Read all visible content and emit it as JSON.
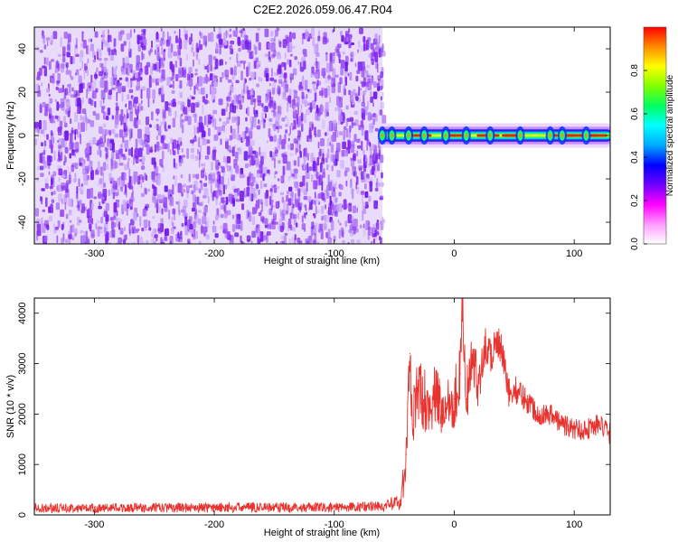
{
  "title": "C2E2.2026.059.06.47.R04",
  "colors": {
    "background": "#ffffff",
    "spectrogram_noise": "#7f1ff0",
    "snr_line": "#e8322e",
    "colormap": [
      "#ffffff",
      "#ff9bff",
      "#ff00ff",
      "#7000ff",
      "#0000ff",
      "#00aaff",
      "#00ffff",
      "#00ff60",
      "#7fff00",
      "#ffff00",
      "#ff8c00",
      "#ff0000"
    ]
  },
  "chart_data": [
    {
      "type": "heatmap",
      "xlabel": "Height of straight line (km)",
      "ylabel": "Frequency (Hz)",
      "xlim": [
        -350,
        130
      ],
      "ylim": [
        -50,
        50
      ],
      "x_ticks": [
        -300,
        -200,
        -100,
        0,
        100
      ],
      "x_tick_labels": [
        "-300",
        "-200",
        "-100",
        "0",
        "100"
      ],
      "y_ticks": [
        -40,
        -20,
        0,
        20,
        40
      ],
      "y_tick_labels": [
        "-40",
        "-20",
        "0",
        "20",
        "40"
      ],
      "noise_region_x": [
        -350,
        -60
      ],
      "signal": {
        "x_start": -62,
        "x_end": 130,
        "frequency": 0,
        "band_halfwidth": 4,
        "peak_x": [
          -60,
          -52,
          -38,
          -25,
          -7,
          10,
          30,
          55,
          80,
          90,
          110
        ]
      },
      "colorbar": {
        "label": "Normalized spectral amplitude",
        "range": [
          0,
          1
        ],
        "ticks": [
          0.0,
          0.2,
          0.4,
          0.6,
          0.8
        ],
        "tick_labels": [
          "0.0",
          "0.2",
          "0.4",
          "0.6",
          "0.8"
        ]
      }
    },
    {
      "type": "line",
      "xlabel": "Height of straight line (km)",
      "ylabel": "SNR (10 * v/v)",
      "xlim": [
        -350,
        130
      ],
      "ylim": [
        0,
        4300
      ],
      "x_ticks": [
        -300,
        -200,
        -100,
        0,
        100
      ],
      "x_tick_labels": [
        "-300",
        "-200",
        "-100",
        "0",
        "100"
      ],
      "y_ticks": [
        0,
        1000,
        2000,
        3000,
        4000
      ],
      "y_tick_labels": [
        "0",
        "1000",
        "2000",
        "3000",
        "4000"
      ],
      "series": [
        {
          "x": [
            -350,
            -300,
            -250,
            -200,
            -150,
            -100,
            -75,
            -55,
            -45,
            -40,
            -37,
            -35,
            -30,
            -25,
            -20,
            -15,
            -10,
            -5,
            0,
            5,
            7,
            10,
            15,
            20,
            25,
            30,
            35,
            40,
            45,
            50,
            60,
            70,
            80,
            90,
            100,
            110,
            120,
            130
          ],
          "y": [
            150,
            150,
            160,
            160,
            170,
            160,
            180,
            200,
            300,
            1200,
            3200,
            1800,
            2500,
            2300,
            2200,
            2400,
            2000,
            2300,
            2300,
            2800,
            4250,
            2300,
            3100,
            2600,
            3350,
            3200,
            3400,
            3200,
            2400,
            2500,
            2300,
            2000,
            2000,
            1800,
            1700,
            1700,
            1800,
            1600
          ],
          "noise_amplitude": [
            150,
            150,
            160,
            160,
            170,
            160,
            180,
            230,
            200,
            700,
            900,
            1100,
            1200,
            1200,
            1100,
            1100,
            1000,
            1000,
            1100,
            1100,
            900,
            1000,
            900,
            900,
            800,
            800,
            700,
            700,
            600,
            500,
            500,
            400,
            400,
            400,
            400,
            400,
            400,
            400
          ]
        }
      ]
    }
  ]
}
